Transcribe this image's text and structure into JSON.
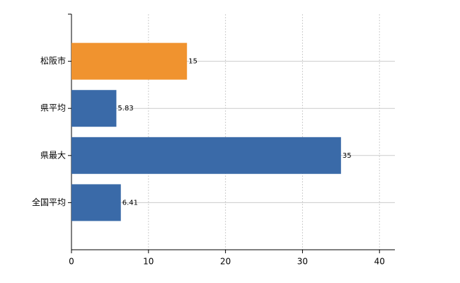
{
  "chart_data": {
    "type": "bar",
    "orientation": "horizontal",
    "categories": [
      "松阪市",
      "県平均",
      "県最大",
      "全国平均"
    ],
    "values": [
      15,
      5.83,
      35,
      6.41
    ],
    "colors": [
      "#f0932f",
      "#3a6aa8",
      "#3a6aa8",
      "#3a6aa8"
    ],
    "xlim": [
      0,
      42
    ],
    "xticks": [
      0,
      10,
      20,
      30,
      40
    ],
    "grid": true
  }
}
